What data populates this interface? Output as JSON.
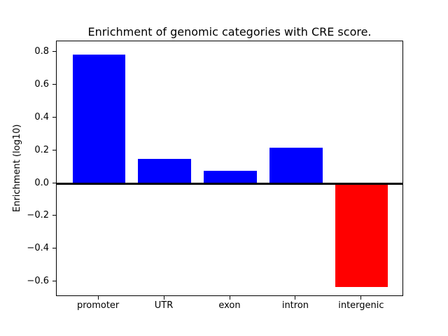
{
  "chart_data": {
    "type": "bar",
    "title": "Enrichment of genomic categories with CRE score.",
    "xlabel": "",
    "ylabel": "Enrichment (log10)",
    "categories": [
      "promoter",
      "UTR",
      "exon",
      "intron",
      "intergenic"
    ],
    "values": [
      0.79,
      0.15,
      0.08,
      0.22,
      -0.63
    ],
    "bar_colors": [
      "#0000ff",
      "#0000ff",
      "#0000ff",
      "#0000ff",
      "#ff0000"
    ],
    "positive_color": "#0000ff",
    "negative_color": "#ff0000",
    "yticks": [
      {
        "value": 0.8,
        "label": "0.8"
      },
      {
        "value": 0.6,
        "label": "0.6"
      },
      {
        "value": 0.4,
        "label": "0.4"
      },
      {
        "value": 0.2,
        "label": "0.2"
      },
      {
        "value": 0.0,
        "label": "0.0"
      },
      {
        "value": -0.2,
        "label": "−0.2"
      },
      {
        "value": -0.4,
        "label": "−0.4"
      },
      {
        "value": -0.6,
        "label": "−0.6"
      }
    ],
    "ylim": [
      -0.69,
      0.87
    ],
    "xlim": [
      -0.64,
      4.64
    ],
    "bar_width_units": 0.8,
    "grid": false,
    "legend": null,
    "zero_line_color": "#000000",
    "frame_color": "#000000",
    "background_color": "#ffffff"
  }
}
